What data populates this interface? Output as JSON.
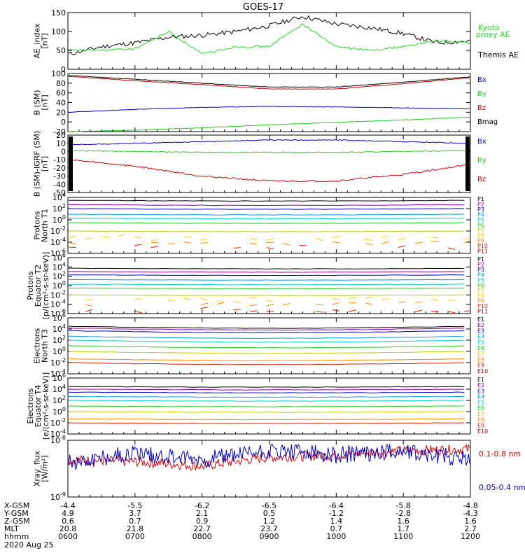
{
  "title": "GOES-17",
  "panels": [
    {
      "id": "ae",
      "ylabel": [
        "AE_index",
        "[nT]"
      ],
      "yticks": [
        "150",
        "100",
        "50",
        "0"
      ],
      "ylim": [
        0,
        150
      ],
      "legend": [
        {
          "text": "Kyoto",
          "color": "#22dd22"
        },
        {
          "text": "proxy AE",
          "color": "#22dd22"
        },
        {
          "text": "Themis AE",
          "color": "#000000"
        }
      ]
    },
    {
      "id": "bsm",
      "ylabel": [
        "B (SM)",
        "[nT]"
      ],
      "yticks": [
        "100",
        "80",
        "60",
        "40",
        "20",
        "0",
        "-20"
      ],
      "ylim": [
        -20,
        100
      ],
      "legend": [
        {
          "text": "Bx",
          "color": "#0000cc"
        },
        {
          "text": "By",
          "color": "#22cc22"
        },
        {
          "text": "Bz",
          "color": "#cc0000"
        },
        {
          "text": "Bmag",
          "color": "#000000"
        }
      ]
    },
    {
      "id": "bigrf",
      "ylabel": [
        "B (SM)-IGRF (SM)",
        "[nT]"
      ],
      "yticks": [
        "20",
        "10",
        "0",
        "-10",
        "-20",
        "-30",
        "-40",
        "-50"
      ],
      "ylim": [
        -50,
        20
      ],
      "legend": [
        {
          "text": "Bx",
          "color": "#0000cc"
        },
        {
          "text": "By",
          "color": "#22cc22"
        },
        {
          "text": "Bz",
          "color": "#cc0000"
        }
      ]
    },
    {
      "id": "pn",
      "ylabel": [
        "Protons",
        "North T1"
      ],
      "yticks": [
        "10^4",
        "10^2",
        "10^0",
        "10^-2",
        "10^-4",
        "10^-6"
      ],
      "legend": [
        {
          "text": "P1",
          "color": "#000000"
        },
        {
          "text": "P2",
          "color": "#8800aa"
        },
        {
          "text": "P3",
          "color": "#0000cc"
        },
        {
          "text": "P4",
          "color": "#0099ee"
        },
        {
          "text": "P5",
          "color": "#00cccc"
        },
        {
          "text": "P6",
          "color": "#22cc22"
        },
        {
          "text": "P7",
          "color": "#bbcc00"
        },
        {
          "text": "P8",
          "color": "#ffcc00"
        },
        {
          "text": "P9",
          "color": "#ff8800"
        },
        {
          "text": "P10",
          "color": "#dd2200"
        },
        {
          "text": "P11",
          "color": "#aa0000"
        }
      ]
    },
    {
      "id": "pe",
      "ylabel": [
        "Protons",
        "Equator T2",
        "[p/(cm²-s-sr-keV)]"
      ],
      "yticks": [
        "10^6",
        "10^4",
        "10^2",
        "10^0",
        "10^-2",
        "10^-4",
        "10^-6"
      ],
      "legend": [
        {
          "text": "P1",
          "color": "#000000"
        },
        {
          "text": "P2",
          "color": "#8800aa"
        },
        {
          "text": "P3",
          "color": "#0000cc"
        },
        {
          "text": "P4",
          "color": "#0099ee"
        },
        {
          "text": "P5",
          "color": "#00cccc"
        },
        {
          "text": "P6",
          "color": "#22cc22"
        },
        {
          "text": "P7",
          "color": "#bbcc00"
        },
        {
          "text": "P8",
          "color": "#ffcc00"
        },
        {
          "text": "P9",
          "color": "#ff8800"
        },
        {
          "text": "P10",
          "color": "#dd2200"
        },
        {
          "text": "P11",
          "color": "#aa0000"
        }
      ]
    },
    {
      "id": "en",
      "ylabel": [
        "Electrons",
        "North T3"
      ],
      "yticks": [
        "10^6",
        "10^4",
        "10^2",
        "10^0",
        "10^-2",
        "10^-4"
      ],
      "legend": [
        {
          "text": "E1",
          "color": "#000000"
        },
        {
          "text": "E2",
          "color": "#8800aa"
        },
        {
          "text": "E3",
          "color": "#0000cc"
        },
        {
          "text": "E4",
          "color": "#0099ee"
        },
        {
          "text": "E5",
          "color": "#00cccc"
        },
        {
          "text": "E6",
          "color": "#22cc22"
        },
        {
          "text": "E7",
          "color": "#bbcc00"
        },
        {
          "text": "E8",
          "color": "#ff8800"
        },
        {
          "text": "E9",
          "color": "#dd2200"
        },
        {
          "text": "E10",
          "color": "#aa0000"
        }
      ]
    },
    {
      "id": "ee",
      "ylabel": [
        "Electrons",
        "Equator T4",
        "[e/(cm²-s-sr-keV)]"
      ],
      "yticks": [
        "10^6",
        "10^4",
        "10^2",
        "10^0",
        "10^-2",
        "10^-4"
      ],
      "legend": [
        {
          "text": "E1",
          "color": "#000000"
        },
        {
          "text": "E2",
          "color": "#8800aa"
        },
        {
          "text": "E3",
          "color": "#0000cc"
        },
        {
          "text": "E4",
          "color": "#0099ee"
        },
        {
          "text": "E5",
          "color": "#00cccc"
        },
        {
          "text": "E6",
          "color": "#22cc22"
        },
        {
          "text": "E7",
          "color": "#bbcc00"
        },
        {
          "text": "E8",
          "color": "#ff8800"
        },
        {
          "text": "E9",
          "color": "#dd2200"
        },
        {
          "text": "E10",
          "color": "#aa0000"
        }
      ]
    },
    {
      "id": "xray",
      "ylabel": [
        "Xray_flux",
        "[W/m²]"
      ],
      "yticks": [
        "10^-8",
        "10^-9"
      ],
      "legend": [
        {
          "text": "0.1-0.8 nm",
          "color": "#dd0000"
        },
        {
          "text": "0.05-0.4 nm",
          "color": "#0000cc"
        }
      ]
    }
  ],
  "xaxis": {
    "rows": [
      {
        "label": "X-GSM",
        "values": [
          "-4.4",
          "-5.5",
          "-6.2",
          "-6.5",
          "-6.4",
          "-5.8",
          "-4.8"
        ]
      },
      {
        "label": "Y-GSM",
        "values": [
          "4.9",
          "3.7",
          "2.1",
          "0.5",
          "-1.2",
          "-2.8",
          "-4.3"
        ]
      },
      {
        "label": "Z-GSM",
        "values": [
          "0.6",
          "0.7",
          "0.9",
          "1.2",
          "1.4",
          "1.6",
          "1.6"
        ]
      },
      {
        "label": "MLT",
        "values": [
          "20.8",
          "21.8",
          "22.7",
          "23.7",
          "0.7",
          "1.7",
          "2.7"
        ]
      },
      {
        "label": "hhmm",
        "values": [
          "0600",
          "0700",
          "0800",
          "0900",
          "1000",
          "1100",
          "1200"
        ]
      }
    ],
    "date": "2020 Aug 25"
  },
  "chart_data": [
    {
      "type": "line",
      "title": "GOES-17",
      "ylabel": "AE_index [nT]",
      "ylim": [
        0,
        150
      ],
      "x": [
        "0600",
        "0630",
        "0700",
        "0730",
        "0800",
        "0830",
        "0900",
        "0930",
        "1000",
        "1030",
        "1100",
        "1130",
        "1200"
      ],
      "series": [
        {
          "name": "Themis AE",
          "values": [
            40,
            60,
            70,
            85,
            90,
            100,
            115,
            140,
            120,
            110,
            95,
            70,
            75
          ]
        },
        {
          "name": "Kyoto proxy AE",
          "values": [
            50,
            50,
            55,
            100,
            40,
            60,
            60,
            120,
            60,
            50,
            60,
            75,
            70
          ]
        }
      ]
    },
    {
      "type": "line",
      "ylabel": "B (SM) [nT]",
      "ylim": [
        -20,
        100
      ],
      "x": [
        "0600",
        "0700",
        "0800",
        "0900",
        "1000",
        "1100",
        "1200"
      ],
      "series": [
        {
          "name": "Bmag",
          "values": [
            96,
            88,
            80,
            72,
            72,
            82,
            93
          ]
        },
        {
          "name": "Bz",
          "values": [
            94,
            85,
            77,
            68,
            68,
            79,
            91
          ]
        },
        {
          "name": "Bx",
          "values": [
            20,
            26,
            30,
            32,
            31,
            29,
            27
          ]
        },
        {
          "name": "By",
          "values": [
            -20,
            -17,
            -12,
            -6,
            -1,
            4,
            10
          ]
        }
      ]
    },
    {
      "type": "line",
      "ylabel": "B (SM)-IGRF (SM) [nT]",
      "ylim": [
        -50,
        20
      ],
      "x": [
        "0600",
        "0700",
        "0800",
        "0900",
        "1000",
        "1100",
        "1200"
      ],
      "series": [
        {
          "name": "Bx",
          "values": [
            8,
            10,
            12,
            14,
            14,
            12,
            10
          ]
        },
        {
          "name": "By",
          "values": [
            1,
            0,
            -1,
            -1,
            -1,
            0,
            1
          ]
        },
        {
          "name": "Bz",
          "values": [
            -10,
            -18,
            -30,
            -36,
            -36,
            -28,
            -16
          ]
        }
      ]
    },
    {
      "type": "line",
      "ylabel": "Protons North T1",
      "yscale": "log",
      "series": [
        {
          "name": "P1",
          "values": [
            3000
          ]
        },
        {
          "name": "P2",
          "values": [
            500
          ]
        },
        {
          "name": "P3",
          "values": [
            100
          ]
        },
        {
          "name": "P4",
          "values": [
            10
          ]
        },
        {
          "name": "P5",
          "values": [
            2
          ]
        },
        {
          "name": "P6",
          "values": [
            0.3
          ]
        },
        {
          "name": "P7",
          "values": [
            0.01
          ]
        },
        {
          "name": "P8",
          "values": [
            0.0005
          ]
        },
        {
          "name": "P9",
          "values": [
            0.0001
          ]
        },
        {
          "name": "P10",
          "values": [
            2e-05
          ]
        }
      ]
    },
    {
      "type": "line",
      "ylabel": "Protons Equator T2 [p/(cm2-s-sr-keV)]",
      "yscale": "log",
      "series": [
        {
          "name": "P1",
          "values": [
            5000
          ]
        },
        {
          "name": "P2",
          "values": [
            1000
          ]
        },
        {
          "name": "P3",
          "values": [
            200
          ]
        },
        {
          "name": "P4",
          "values": [
            20
          ]
        },
        {
          "name": "P5",
          "values": [
            2
          ]
        },
        {
          "name": "P6",
          "values": [
            0.3
          ]
        },
        {
          "name": "P7",
          "values": [
            0.01
          ]
        },
        {
          "name": "P8",
          "values": [
            0.001
          ]
        },
        {
          "name": "P9",
          "values": [
            0.0001
          ]
        },
        {
          "name": "P10",
          "values": [
            5e-06
          ]
        }
      ]
    },
    {
      "type": "line",
      "ylabel": "Electrons North T3",
      "yscale": "log",
      "series": [
        {
          "name": "E1",
          "values": [
            30000
          ]
        },
        {
          "name": "E2",
          "values": [
            15000
          ]
        },
        {
          "name": "E3",
          "values": [
            5000
          ]
        },
        {
          "name": "E4",
          "values": [
            500
          ]
        },
        {
          "name": "E5",
          "values": [
            100
          ]
        },
        {
          "name": "E6",
          "values": [
            10
          ]
        },
        {
          "name": "E7",
          "values": [
            1
          ]
        },
        {
          "name": "E8",
          "values": [
            0.05
          ]
        },
        {
          "name": "E9",
          "values": [
            0.01
          ]
        }
      ]
    },
    {
      "type": "line",
      "ylabel": "Electrons Equator T4 [e/(cm2-s-sr-keV)]",
      "yscale": "log",
      "series": [
        {
          "name": "E1",
          "values": [
            30000
          ]
        },
        {
          "name": "E2",
          "values": [
            10000
          ]
        },
        {
          "name": "E3",
          "values": [
            3000
          ]
        },
        {
          "name": "E4",
          "values": [
            500
          ]
        },
        {
          "name": "E5",
          "values": [
            100
          ]
        },
        {
          "name": "E6",
          "values": [
            10
          ]
        },
        {
          "name": "E7",
          "values": [
            1
          ]
        },
        {
          "name": "E8",
          "values": [
            0.05
          ]
        },
        {
          "name": "E9",
          "values": [
            0.01
          ]
        }
      ]
    },
    {
      "type": "line",
      "ylabel": "Xray_flux [W/m2]",
      "yscale": "log",
      "ylim": [
        1e-09,
        1e-08
      ],
      "x": [
        "0600",
        "0700",
        "0800",
        "0900",
        "1000",
        "1100",
        "1200"
      ],
      "series": [
        {
          "name": "0.1-0.8 nm",
          "values": [
            4.5e-09,
            4.2e-09,
            3.5e-09,
            5e-09,
            5.5e-09,
            6.5e-09,
            7e-09
          ]
        },
        {
          "name": "0.05-0.4 nm",
          "values": [
            4e-09,
            6e-09,
            4.5e-09,
            6.5e-09,
            5.5e-09,
            6.5e-09,
            4.5e-09
          ]
        }
      ]
    }
  ]
}
